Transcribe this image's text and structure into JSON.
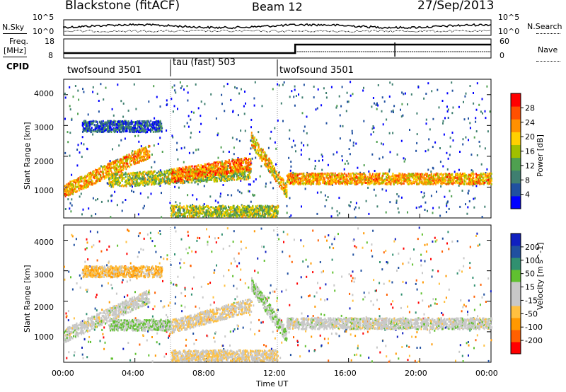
{
  "header": {
    "station": "Blackstone (fitACF)",
    "beam": "Beam 12",
    "date": "27/Sep/2013"
  },
  "noise_panel": {
    "left_label": "N.Sky",
    "left_ticks": [
      "10^5",
      "10^0"
    ],
    "right_label": "N.Search",
    "right_ticks": [
      "10^5",
      "10^0"
    ]
  },
  "freq_panel": {
    "left_label_top": "Freq.",
    "left_label_bottom": "[MHz]",
    "left_ticks": [
      "18",
      "8"
    ],
    "right_label": "Nave",
    "right_ticks": [
      "60",
      "0"
    ]
  },
  "cpid_panel": {
    "label": "CPID",
    "segments": [
      {
        "label": "twofsound 3501",
        "start_hour": 0,
        "end_hour": 6
      },
      {
        "label": "tau (fast) 503",
        "start_hour": 6,
        "end_hour": 12
      },
      {
        "label": "twofsound 3501",
        "start_hour": 12,
        "end_hour": 24
      }
    ]
  },
  "colors": {
    "power_scale": [
      "#0000ff",
      "#2050a0",
      "#3f7f70",
      "#4fa050",
      "#a0c000",
      "#ffd000",
      "#ff9000",
      "#ff5000",
      "#ff0000"
    ],
    "velocity_scale": [
      "#ff0000",
      "#ff6000",
      "#ff9800",
      "#ffc040",
      "#c8c8c8",
      "#c8c8c8",
      "#60c030",
      "#309070",
      "#2050a0",
      "#1020c0"
    ]
  },
  "chart_data": [
    {
      "type": "heatmap",
      "panel": "power",
      "ylabel": "Slant Range [km]",
      "ylim": [
        0,
        4500
      ],
      "yticks": [
        "1000",
        "2000",
        "3000",
        "4000"
      ],
      "xlim_hours": [
        0,
        24
      ],
      "colorbar": {
        "label": "Power [dB]",
        "ticks": [
          "28",
          "24",
          "20",
          "16",
          "12",
          "8",
          "4"
        ],
        "range": [
          0,
          32
        ]
      },
      "echo_bands": [
        {
          "start_hour": 0.0,
          "end_hour": 4.8,
          "range_start_km": 900,
          "range_end_km": 2200,
          "power_db": 22
        },
        {
          "start_hour": 1.0,
          "end_hour": 5.5,
          "range_start_km": 3000,
          "range_end_km": 3000,
          "power_db": 6
        },
        {
          "start_hour": 2.5,
          "end_hour": 10.5,
          "range_start_km": 1250,
          "range_end_km": 1500,
          "power_db": 16
        },
        {
          "start_hour": 6.0,
          "end_hour": 10.5,
          "range_start_km": 1400,
          "range_end_km": 1800,
          "power_db": 24
        },
        {
          "start_hour": 10.5,
          "end_hour": 12.5,
          "range_start_km": 2600,
          "range_end_km": 900,
          "power_db": 20
        },
        {
          "start_hour": 12.5,
          "end_hour": 24.0,
          "range_start_km": 1300,
          "range_end_km": 1300,
          "power_db": 22
        },
        {
          "start_hour": 6.0,
          "end_hour": 12.0,
          "range_start_km": 250,
          "range_end_km": 250,
          "power_db": 16
        }
      ]
    },
    {
      "type": "heatmap",
      "panel": "velocity",
      "ylabel": "Slant Range [km]",
      "ylim": [
        0,
        4500
      ],
      "yticks": [
        "1000",
        "2000",
        "3000",
        "4000"
      ],
      "xlim_hours": [
        0,
        24
      ],
      "xlabel": "Time UT",
      "xticks": [
        "00:00",
        "04:00",
        "08:00",
        "12:00",
        "16:00",
        "20:00",
        "00:00"
      ],
      "colorbar": {
        "label": "Velocity [m s^-1]",
        "ticks": [
          "200",
          "100",
          "50",
          "15",
          "-15",
          "-50",
          "-100",
          "-200"
        ],
        "range": [
          -250,
          250
        ]
      },
      "echo_bands": [
        {
          "start_hour": 0.0,
          "end_hour": 4.8,
          "range_start_km": 900,
          "range_end_km": 2200,
          "velocity": 0
        },
        {
          "start_hour": 1.0,
          "end_hour": 5.5,
          "range_start_km": 3000,
          "range_end_km": 3000,
          "velocity": -80
        },
        {
          "start_hour": 2.5,
          "end_hour": 6.0,
          "range_start_km": 1250,
          "range_end_km": 1250,
          "velocity": 40
        },
        {
          "start_hour": 6.0,
          "end_hour": 10.5,
          "range_start_km": 1200,
          "range_end_km": 1900,
          "velocity": -40
        },
        {
          "start_hour": 10.5,
          "end_hour": 12.5,
          "range_start_km": 2600,
          "range_end_km": 900,
          "velocity": 40
        },
        {
          "start_hour": 12.5,
          "end_hour": 24.0,
          "range_start_km": 1300,
          "range_end_km": 1300,
          "velocity": 0
        },
        {
          "start_hour": 6.0,
          "end_hour": 12.0,
          "range_start_km": 250,
          "range_end_km": 250,
          "velocity": -40
        }
      ]
    }
  ]
}
